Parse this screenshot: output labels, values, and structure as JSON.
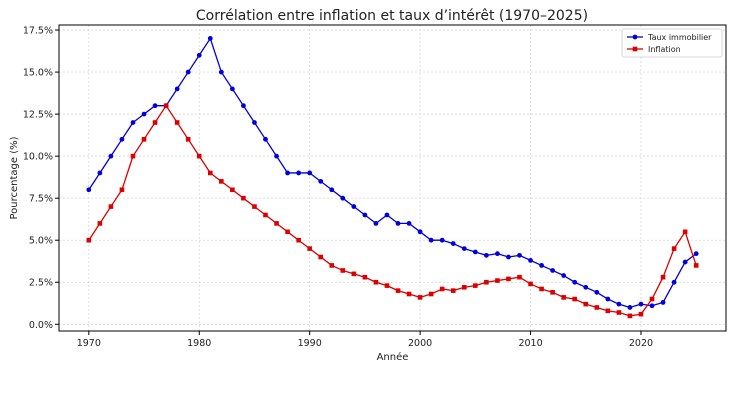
{
  "chart_data": {
    "type": "line",
    "title": "Corrélation entre inflation et taux d’intérêt (1970–2025)",
    "xlabel": "Année",
    "ylabel": "Pourcentage (%)",
    "xlim": [
      1967.3,
      2027.7
    ],
    "ylim": [
      -0.4,
      17.8
    ],
    "x_ticks": [
      1970,
      1980,
      1990,
      2000,
      2010,
      2020
    ],
    "x_tick_labels": [
      "1970",
      "1980",
      "1990",
      "2000",
      "2010",
      "2020"
    ],
    "y_ticks": [
      0,
      2.5,
      5,
      7.5,
      10,
      12.5,
      15,
      17.5
    ],
    "y_tick_labels": [
      "0.0%",
      "2.5%",
      "5.0%",
      "7.5%",
      "10.0%",
      "12.5%",
      "15.0%",
      "17.5%"
    ],
    "grid": true,
    "legend_position": "top-right",
    "x": [
      1970,
      1971,
      1972,
      1973,
      1974,
      1975,
      1976,
      1977,
      1978,
      1979,
      1980,
      1981,
      1982,
      1983,
      1984,
      1985,
      1986,
      1987,
      1988,
      1989,
      1990,
      1991,
      1992,
      1993,
      1994,
      1995,
      1996,
      1997,
      1998,
      1999,
      2000,
      2001,
      2002,
      2003,
      2004,
      2005,
      2006,
      2007,
      2008,
      2009,
      2010,
      2011,
      2012,
      2013,
      2014,
      2015,
      2016,
      2017,
      2018,
      2019,
      2020,
      2021,
      2022,
      2023,
      2024,
      2025
    ],
    "series": [
      {
        "name": "Taux immobilier",
        "color": "#0000dd",
        "marker": "circle",
        "values": [
          8.0,
          9.0,
          10.0,
          11.0,
          12.0,
          12.5,
          13.0,
          13.0,
          14.0,
          15.0,
          16.0,
          17.0,
          15.0,
          14.0,
          13.0,
          12.0,
          11.0,
          10.0,
          9.0,
          9.0,
          9.0,
          8.5,
          8.0,
          7.5,
          7.0,
          6.5,
          6.0,
          6.5,
          6.0,
          6.0,
          5.5,
          5.0,
          5.0,
          4.8,
          4.5,
          4.3,
          4.1,
          4.2,
          4.0,
          4.1,
          3.8,
          3.5,
          3.2,
          2.9,
          2.5,
          2.2,
          1.9,
          1.5,
          1.2,
          1.0,
          1.2,
          1.1,
          1.3,
          2.5,
          3.7,
          4.2
        ]
      },
      {
        "name": "Inflation",
        "color": "#dd0000",
        "marker": "square",
        "values": [
          5.0,
          6.0,
          7.0,
          8.0,
          10.0,
          11.0,
          12.0,
          13.0,
          12.0,
          11.0,
          10.0,
          9.0,
          8.5,
          8.0,
          7.5,
          7.0,
          6.5,
          6.0,
          5.5,
          5.0,
          4.5,
          4.0,
          3.5,
          3.2,
          3.0,
          2.8,
          2.5,
          2.3,
          2.0,
          1.8,
          1.6,
          1.8,
          2.1,
          2.0,
          2.2,
          2.3,
          2.5,
          2.6,
          2.7,
          2.8,
          2.4,
          2.1,
          1.9,
          1.6,
          1.5,
          1.2,
          1.0,
          0.8,
          0.7,
          0.5,
          0.6,
          1.5,
          2.8,
          4.5,
          5.5,
          3.5
        ]
      }
    ]
  }
}
